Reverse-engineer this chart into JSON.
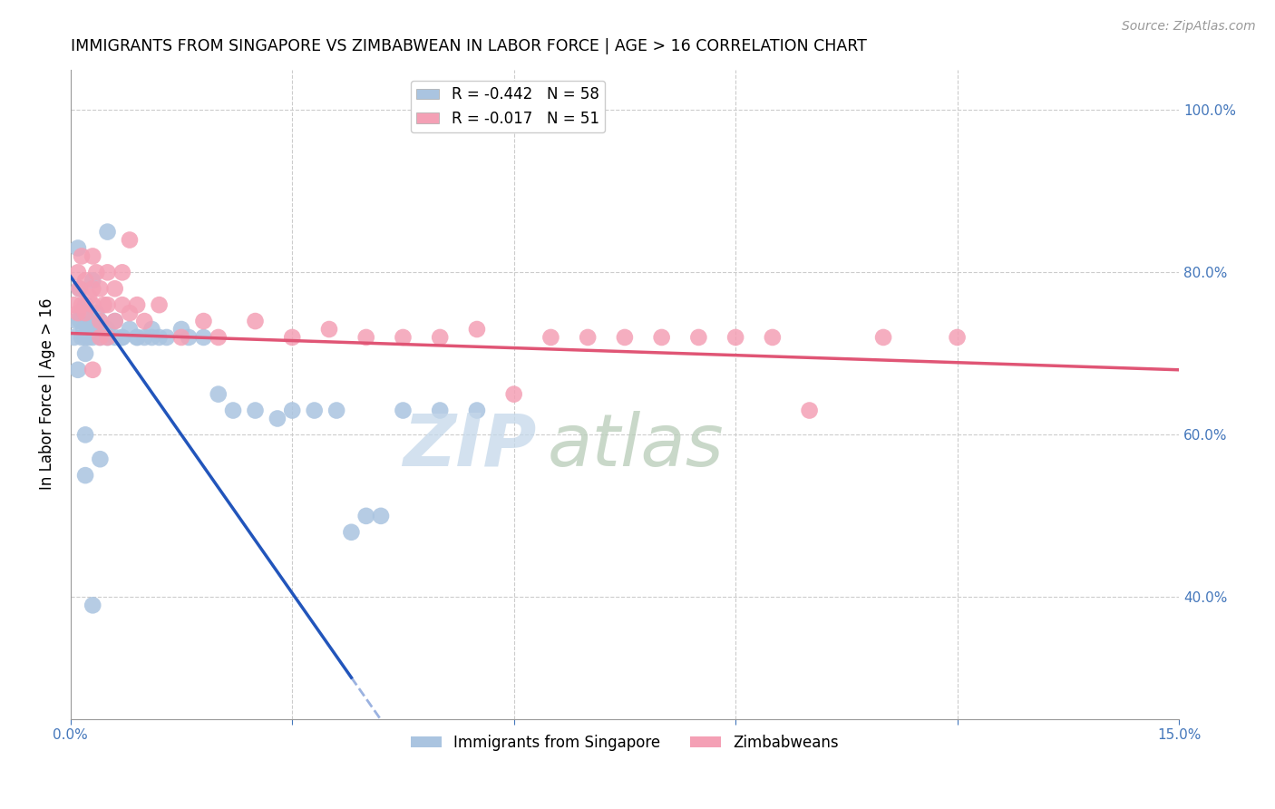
{
  "title": "IMMIGRANTS FROM SINGAPORE VS ZIMBABWEAN IN LABOR FORCE | AGE > 16 CORRELATION CHART",
  "source": "Source: ZipAtlas.com",
  "ylabel": "In Labor Force | Age > 16",
  "xlim": [
    0.0,
    0.15
  ],
  "ylim": [
    0.25,
    1.05
  ],
  "singapore_color": "#aac4e0",
  "zimbabwe_color": "#f4a0b5",
  "singapore_line_color": "#2255bb",
  "zimbabwe_line_color": "#e05575",
  "legend_r_singapore": "R = -0.442",
  "legend_n_singapore": "N = 58",
  "legend_r_zimbabwe": "R = -0.017",
  "legend_n_zimbabwe": "N = 51",
  "sg_x": [
    0.0005,
    0.0008,
    0.001,
    0.001,
    0.0012,
    0.0013,
    0.0015,
    0.0015,
    0.0018,
    0.002,
    0.002,
    0.002,
    0.0022,
    0.0025,
    0.0025,
    0.003,
    0.003,
    0.003,
    0.0032,
    0.0035,
    0.004,
    0.004,
    0.0045,
    0.005,
    0.005,
    0.006,
    0.006,
    0.007,
    0.008,
    0.009,
    0.01,
    0.011,
    0.012,
    0.013,
    0.015,
    0.016,
    0.018,
    0.02,
    0.022,
    0.025,
    0.028,
    0.03,
    0.033,
    0.036,
    0.038,
    0.04,
    0.042,
    0.045,
    0.05,
    0.055,
    0.002,
    0.002,
    0.003,
    0.004,
    0.005,
    0.007,
    0.009,
    0.011
  ],
  "sg_y": [
    0.72,
    0.74,
    0.83,
    0.68,
    0.78,
    0.74,
    0.75,
    0.72,
    0.73,
    0.76,
    0.72,
    0.7,
    0.74,
    0.73,
    0.72,
    0.79,
    0.74,
    0.72,
    0.73,
    0.75,
    0.72,
    0.74,
    0.73,
    0.72,
    0.73,
    0.72,
    0.74,
    0.72,
    0.73,
    0.72,
    0.72,
    0.73,
    0.72,
    0.72,
    0.73,
    0.72,
    0.72,
    0.65,
    0.63,
    0.63,
    0.62,
    0.63,
    0.63,
    0.63,
    0.48,
    0.5,
    0.5,
    0.63,
    0.63,
    0.63,
    0.6,
    0.55,
    0.39,
    0.57,
    0.85,
    0.72,
    0.72,
    0.72
  ],
  "zw_x": [
    0.0005,
    0.001,
    0.001,
    0.0012,
    0.0015,
    0.0015,
    0.002,
    0.002,
    0.0025,
    0.003,
    0.003,
    0.003,
    0.0035,
    0.004,
    0.004,
    0.0045,
    0.005,
    0.005,
    0.006,
    0.006,
    0.007,
    0.007,
    0.008,
    0.009,
    0.01,
    0.012,
    0.015,
    0.018,
    0.02,
    0.025,
    0.03,
    0.035,
    0.04,
    0.045,
    0.05,
    0.055,
    0.06,
    0.065,
    0.07,
    0.075,
    0.08,
    0.085,
    0.09,
    0.095,
    0.1,
    0.11,
    0.12,
    0.003,
    0.004,
    0.005,
    0.008
  ],
  "zw_y": [
    0.76,
    0.8,
    0.75,
    0.78,
    0.82,
    0.76,
    0.79,
    0.75,
    0.77,
    0.82,
    0.76,
    0.78,
    0.8,
    0.78,
    0.74,
    0.76,
    0.8,
    0.76,
    0.78,
    0.74,
    0.76,
    0.8,
    0.75,
    0.76,
    0.74,
    0.76,
    0.72,
    0.74,
    0.72,
    0.74,
    0.72,
    0.73,
    0.72,
    0.72,
    0.72,
    0.73,
    0.65,
    0.72,
    0.72,
    0.72,
    0.72,
    0.72,
    0.72,
    0.72,
    0.63,
    0.72,
    0.72,
    0.68,
    0.72,
    0.72,
    0.84
  ],
  "sg_line_x0": 0.0,
  "sg_line_x_solid_end": 0.038,
  "sg_line_x_dash_end": 0.15,
  "sg_line_y0": 0.795,
  "sg_line_slope": -13.0,
  "zw_line_y0": 0.725,
  "zw_line_slope": -0.3
}
